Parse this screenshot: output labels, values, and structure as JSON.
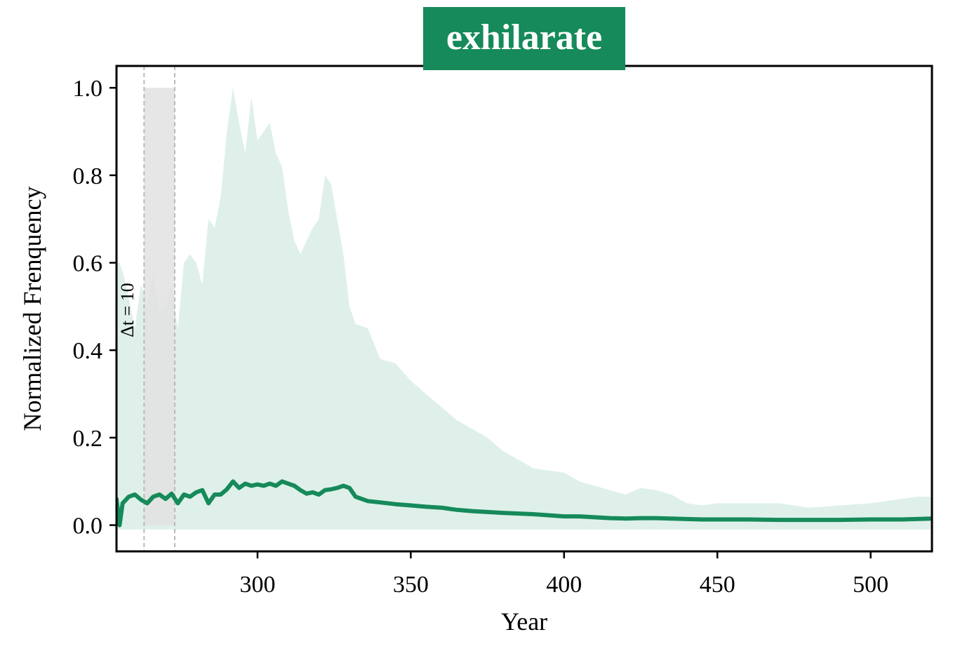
{
  "chart_data": {
    "type": "line",
    "title": "exhilarate",
    "xlabel": "Year",
    "ylabel": "Normalized Frenquency",
    "xlim": [
      254,
      520
    ],
    "ylim": [
      -0.06,
      1.05
    ],
    "xticks": [
      300,
      350,
      400,
      450,
      500
    ],
    "yticks": [
      0.0,
      0.2,
      0.4,
      0.6,
      0.8,
      1.0
    ],
    "ytick_labels": [
      "0.0",
      "0.2",
      "0.4",
      "0.6",
      "0.8",
      "1.0"
    ],
    "grid": false,
    "highlight": {
      "x_start": 263,
      "x_end": 273,
      "y_top": 1.0,
      "label": "Δt = 10"
    },
    "colors": {
      "line": "#168a5a",
      "band": "#dff0ea",
      "highlight": "#e2e2e2",
      "title_bg": "#168a5a"
    },
    "series": [
      {
        "x": [
          254,
          255,
          256,
          258,
          260,
          262,
          264,
          266,
          268,
          270,
          272,
          274,
          276,
          278,
          280,
          282,
          284,
          286,
          288,
          290,
          292,
          294,
          296,
          298,
          300,
          302,
          304,
          306,
          308,
          310,
          312,
          314,
          316,
          318,
          320,
          322,
          324,
          326,
          328,
          330,
          332,
          336,
          340,
          345,
          350,
          355,
          360,
          365,
          370,
          375,
          380,
          390,
          400,
          405,
          410,
          415,
          420,
          425,
          430,
          435,
          440,
          445,
          450,
          460,
          470,
          475,
          480,
          490,
          500,
          510,
          515,
          520
        ],
        "values": [
          0.06,
          0.0,
          0.05,
          0.065,
          0.07,
          0.058,
          0.05,
          0.065,
          0.07,
          0.06,
          0.072,
          0.05,
          0.07,
          0.065,
          0.075,
          0.08,
          0.05,
          0.07,
          0.07,
          0.082,
          0.1,
          0.085,
          0.095,
          0.09,
          0.093,
          0.09,
          0.095,
          0.09,
          0.1,
          0.095,
          0.09,
          0.08,
          0.072,
          0.075,
          0.07,
          0.08,
          0.082,
          0.085,
          0.09,
          0.085,
          0.065,
          0.055,
          0.052,
          0.048,
          0.045,
          0.042,
          0.04,
          0.035,
          0.032,
          0.03,
          0.028,
          0.025,
          0.02,
          0.02,
          0.018,
          0.016,
          0.015,
          0.016,
          0.016,
          0.015,
          0.014,
          0.013,
          0.013,
          0.013,
          0.012,
          0.012,
          0.012,
          0.012,
          0.013,
          0.013,
          0.014,
          0.015
        ],
        "band_upper": [
          0.6,
          0.6,
          0.58,
          0.52,
          0.45,
          0.55,
          0.5,
          0.58,
          0.49,
          0.5,
          0.55,
          0.45,
          0.6,
          0.62,
          0.6,
          0.55,
          0.7,
          0.68,
          0.75,
          0.9,
          1.0,
          0.92,
          0.85,
          0.98,
          0.88,
          0.9,
          0.92,
          0.85,
          0.82,
          0.72,
          0.65,
          0.62,
          0.65,
          0.68,
          0.7,
          0.8,
          0.78,
          0.7,
          0.62,
          0.5,
          0.46,
          0.45,
          0.38,
          0.37,
          0.33,
          0.3,
          0.27,
          0.24,
          0.22,
          0.2,
          0.17,
          0.13,
          0.12,
          0.1,
          0.09,
          0.08,
          0.07,
          0.085,
          0.08,
          0.07,
          0.05,
          0.045,
          0.05,
          0.05,
          0.05,
          0.045,
          0.04,
          0.045,
          0.05,
          0.06,
          0.065,
          0.065
        ],
        "band_lower": [
          -0.01,
          -0.01,
          -0.01,
          -0.01,
          -0.01,
          -0.01,
          -0.01,
          -0.01,
          -0.01,
          -0.01,
          -0.01,
          -0.01,
          -0.01,
          -0.01,
          -0.01,
          -0.01,
          -0.01,
          -0.01,
          -0.01,
          -0.01,
          -0.01,
          -0.01,
          -0.01,
          -0.01,
          -0.01,
          -0.01,
          -0.01,
          -0.01,
          -0.01,
          -0.01,
          -0.01,
          -0.01,
          -0.01,
          -0.01,
          -0.01,
          -0.01,
          -0.01,
          -0.01,
          -0.01,
          -0.01,
          -0.01,
          -0.01,
          -0.01,
          -0.01,
          -0.01,
          -0.01,
          -0.01,
          -0.01,
          -0.01,
          -0.01,
          -0.01,
          -0.01,
          -0.01,
          -0.01,
          -0.01,
          -0.01,
          -0.01,
          -0.01,
          -0.01,
          -0.01,
          -0.01,
          -0.01,
          -0.01,
          -0.01,
          -0.01,
          -0.01,
          -0.01,
          -0.01,
          -0.01,
          -0.01,
          -0.01,
          -0.01
        ]
      }
    ]
  }
}
